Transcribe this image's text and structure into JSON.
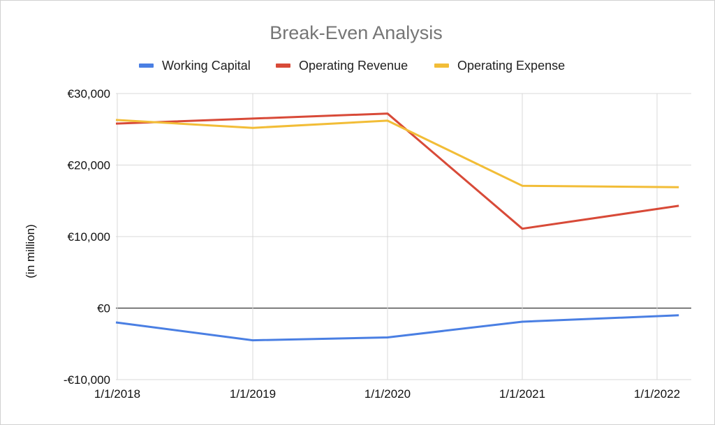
{
  "chart_data": {
    "type": "line",
    "title": "Break-Even Analysis",
    "ylabel": "(in million)",
    "xlabel": "",
    "x": [
      "2018-01-01",
      "2018-07-01",
      "2019-01-01",
      "2020-01-01",
      "2021-01-01",
      "2021-12-01"
    ],
    "x_tick_dates": [
      "2018-01-01",
      "2019-01-01",
      "2020-01-01",
      "2021-01-01",
      "2022-01-01"
    ],
    "x_tick_labels": [
      "1/1/2018",
      "1/1/2019",
      "1/1/2020",
      "1/1/2021",
      "1/1/2022"
    ],
    "ylim": [
      -10000,
      30000
    ],
    "y_ticks": [
      -10000,
      0,
      10000,
      20000,
      30000
    ],
    "y_tick_labels": [
      "-€10,000",
      "€0",
      "€10,000",
      "€20,000",
      "€30,000"
    ],
    "grid": true,
    "legend_position": "top",
    "series": [
      {
        "name": "Working Capital",
        "color": "#4a7fe3",
        "points": [
          {
            "x": "2017-12-01",
            "y": -2000
          },
          {
            "x": "2019-01-01",
            "y": -4500
          },
          {
            "x": "2020-01-01",
            "y": -4100
          },
          {
            "x": "2021-01-01",
            "y": -1900
          },
          {
            "x": "2022-03-01",
            "y": -1000
          }
        ]
      },
      {
        "name": "Operating Revenue",
        "color": "#d84a38",
        "points": [
          {
            "x": "2017-12-01",
            "y": 25800
          },
          {
            "x": "2019-01-01",
            "y": 26500
          },
          {
            "x": "2020-01-01",
            "y": 27200
          },
          {
            "x": "2021-01-01",
            "y": 11100
          },
          {
            "x": "2022-03-01",
            "y": 14300
          }
        ]
      },
      {
        "name": "Operating Expense",
        "color": "#f2bd37",
        "points": [
          {
            "x": "2017-12-01",
            "y": 26300
          },
          {
            "x": "2019-01-01",
            "y": 25200
          },
          {
            "x": "2020-01-01",
            "y": 26200
          },
          {
            "x": "2021-01-01",
            "y": 17100
          },
          {
            "x": "2022-03-01",
            "y": 16900
          }
        ]
      }
    ]
  }
}
